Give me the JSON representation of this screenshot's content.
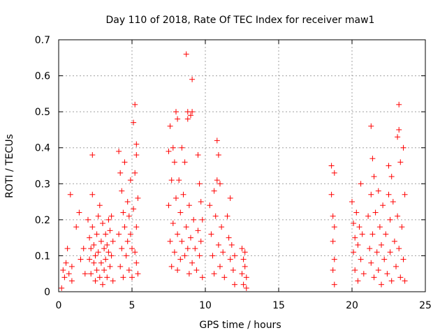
{
  "chart_data": {
    "type": "scatter",
    "title": "Day 110 of 2018, Rate Of TEC Index for receiver maw1",
    "xlabel": "GPS time / hours",
    "ylabel": "ROTI / TECUs",
    "xlim": [
      0,
      25
    ],
    "ylim": [
      0,
      0.7
    ],
    "xticks": [
      "0",
      "5",
      "10",
      "15",
      "20",
      "25"
    ],
    "yticks": [
      "0",
      "0.1",
      "0.2",
      "0.3",
      "0.4",
      "0.5",
      "0.6",
      "0.7"
    ],
    "grid": true,
    "marker": "+",
    "color": "#ff0000",
    "series": [
      {
        "name": "ROTI",
        "points": [
          [
            0.2,
            0.01
          ],
          [
            0.3,
            0.06
          ],
          [
            0.4,
            0.04
          ],
          [
            0.5,
            0.08
          ],
          [
            0.6,
            0.12
          ],
          [
            0.7,
            0.05
          ],
          [
            0.8,
            0.27
          ],
          [
            0.9,
            0.07
          ],
          [
            0.9,
            0.03
          ],
          [
            1.2,
            0.18
          ],
          [
            1.4,
            0.22
          ],
          [
            1.5,
            0.09
          ],
          [
            1.7,
            0.12
          ],
          [
            1.8,
            0.05
          ],
          [
            2.0,
            0.2
          ],
          [
            2.1,
            0.15
          ],
          [
            2.1,
            0.09
          ],
          [
            2.2,
            0.12
          ],
          [
            2.2,
            0.05
          ],
          [
            2.3,
            0.38
          ],
          [
            2.3,
            0.27
          ],
          [
            2.3,
            0.18
          ],
          [
            2.4,
            0.08
          ],
          [
            2.4,
            0.13
          ],
          [
            2.5,
            0.03
          ],
          [
            2.5,
            0.1
          ],
          [
            2.6,
            0.16
          ],
          [
            2.6,
            0.06
          ],
          [
            2.7,
            0.21
          ],
          [
            2.7,
            0.11
          ],
          [
            2.8,
            0.24
          ],
          [
            2.8,
            0.04
          ],
          [
            2.9,
            0.14
          ],
          [
            2.9,
            0.08
          ],
          [
            3.0,
            0.19
          ],
          [
            3.0,
            0.02
          ],
          [
            3.1,
            0.12
          ],
          [
            3.1,
            0.06
          ],
          [
            3.2,
            0.16
          ],
          [
            3.2,
            0.09
          ],
          [
            3.3,
            0.13
          ],
          [
            3.3,
            0.04
          ],
          [
            3.4,
            0.2
          ],
          [
            3.4,
            0.11
          ],
          [
            3.5,
            0.17
          ],
          [
            3.5,
            0.07
          ],
          [
            3.6,
            0.21
          ],
          [
            3.6,
            0.1
          ],
          [
            3.7,
            0.14
          ],
          [
            3.7,
            0.03
          ],
          [
            4.1,
            0.39
          ],
          [
            4.1,
            0.16
          ],
          [
            4.2,
            0.33
          ],
          [
            4.2,
            0.07
          ],
          [
            4.3,
            0.28
          ],
          [
            4.3,
            0.12
          ],
          [
            4.4,
            0.22
          ],
          [
            4.4,
            0.04
          ],
          [
            4.5,
            0.36
          ],
          [
            4.5,
            0.18
          ],
          [
            4.6,
            0.1
          ],
          [
            4.7,
            0.25
          ],
          [
            4.7,
            0.14
          ],
          [
            4.8,
            0.21
          ],
          [
            4.8,
            0.06
          ],
          [
            4.9,
            0.31
          ],
          [
            4.9,
            0.16
          ],
          [
            5.0,
            0.12
          ],
          [
            5.0,
            0.04
          ],
          [
            5.1,
            0.47
          ],
          [
            5.1,
            0.23
          ],
          [
            5.2,
            0.52
          ],
          [
            5.2,
            0.33
          ],
          [
            5.2,
            0.11
          ],
          [
            5.3,
            0.41
          ],
          [
            5.3,
            0.38
          ],
          [
            5.3,
            0.18
          ],
          [
            5.3,
            0.08
          ],
          [
            5.4,
            0.26
          ],
          [
            5.4,
            0.05
          ],
          [
            7.5,
            0.39
          ],
          [
            7.5,
            0.24
          ],
          [
            7.6,
            0.46
          ],
          [
            7.6,
            0.14
          ],
          [
            7.7,
            0.31
          ],
          [
            7.7,
            0.07
          ],
          [
            7.8,
            0.4
          ],
          [
            7.8,
            0.19
          ],
          [
            7.9,
            0.36
          ],
          [
            7.9,
            0.11
          ],
          [
            8.0,
            0.5
          ],
          [
            8.0,
            0.26
          ],
          [
            8.1,
            0.48
          ],
          [
            8.1,
            0.16
          ],
          [
            8.1,
            0.06
          ],
          [
            8.2,
            0.31
          ],
          [
            8.3,
            0.22
          ],
          [
            8.3,
            0.09
          ],
          [
            8.4,
            0.4
          ],
          [
            8.4,
            0.14
          ],
          [
            8.5,
            0.27
          ],
          [
            8.6,
            0.36
          ],
          [
            8.6,
            0.1
          ],
          [
            8.7,
            0.66
          ],
          [
            8.7,
            0.18
          ],
          [
            8.8,
            0.5
          ],
          [
            8.8,
            0.48
          ],
          [
            8.8,
            0.12
          ],
          [
            8.9,
            0.24
          ],
          [
            8.9,
            0.05
          ],
          [
            9.0,
            0.49
          ],
          [
            9.0,
            0.15
          ],
          [
            9.1,
            0.59
          ],
          [
            9.1,
            0.5
          ],
          [
            9.1,
            0.08
          ],
          [
            9.2,
            0.2
          ],
          [
            9.3,
            0.12
          ],
          [
            9.4,
            0.06
          ],
          [
            9.5,
            0.38
          ],
          [
            9.5,
            0.17
          ],
          [
            9.6,
            0.3
          ],
          [
            9.6,
            0.1
          ],
          [
            9.7,
            0.25
          ],
          [
            9.7,
            0.14
          ],
          [
            9.8,
            0.2
          ],
          [
            9.8,
            0.04
          ],
          [
            10.3,
            0.24
          ],
          [
            10.4,
            0.16
          ],
          [
            10.5,
            0.1
          ],
          [
            10.6,
            0.28
          ],
          [
            10.6,
            0.05
          ],
          [
            10.7,
            0.21
          ],
          [
            10.8,
            0.42
          ],
          [
            10.8,
            0.31
          ],
          [
            10.9,
            0.38
          ],
          [
            10.9,
            0.13
          ],
          [
            11.0,
            0.3
          ],
          [
            11.0,
            0.07
          ],
          [
            11.1,
            0.18
          ],
          [
            11.2,
            0.11
          ],
          [
            11.3,
            0.04
          ],
          [
            11.5,
            0.21
          ],
          [
            11.6,
            0.15
          ],
          [
            11.7,
            0.26
          ],
          [
            11.7,
            0.09
          ],
          [
            11.8,
            0.13
          ],
          [
            11.9,
            0.06
          ],
          [
            12.0,
            0.1
          ],
          [
            12.0,
            0.02
          ],
          [
            12.5,
            0.12
          ],
          [
            12.5,
            0.05
          ],
          [
            12.6,
            0.09
          ],
          [
            12.6,
            0.02
          ],
          [
            12.7,
            0.11
          ],
          [
            12.7,
            0.07
          ],
          [
            12.8,
            0.04
          ],
          [
            12.8,
            0.01
          ],
          [
            18.6,
            0.35
          ],
          [
            18.6,
            0.27
          ],
          [
            18.7,
            0.21
          ],
          [
            18.7,
            0.14
          ],
          [
            18.7,
            0.06
          ],
          [
            18.8,
            0.33
          ],
          [
            18.8,
            0.18
          ],
          [
            18.8,
            0.09
          ],
          [
            18.8,
            0.02
          ],
          [
            20.0,
            0.25
          ],
          [
            20.1,
            0.19
          ],
          [
            20.1,
            0.11
          ],
          [
            20.2,
            0.15
          ],
          [
            20.2,
            0.06
          ],
          [
            20.3,
            0.22
          ],
          [
            20.4,
            0.13
          ],
          [
            20.4,
            0.03
          ],
          [
            20.5,
            0.18
          ],
          [
            20.6,
            0.3
          ],
          [
            20.6,
            0.09
          ],
          [
            20.7,
            0.16
          ],
          [
            20.8,
            0.05
          ],
          [
            21.1,
            0.21
          ],
          [
            21.2,
            0.12
          ],
          [
            21.3,
            0.46
          ],
          [
            21.3,
            0.27
          ],
          [
            21.3,
            0.08
          ],
          [
            21.4,
            0.37
          ],
          [
            21.4,
            0.16
          ],
          [
            21.5,
            0.32
          ],
          [
            21.5,
            0.04
          ],
          [
            21.6,
            0.22
          ],
          [
            21.7,
            0.11
          ],
          [
            21.8,
            0.28
          ],
          [
            21.8,
            0.06
          ],
          [
            21.9,
            0.18
          ],
          [
            22.0,
            0.13
          ],
          [
            22.0,
            0.02
          ],
          [
            22.1,
            0.24
          ],
          [
            22.2,
            0.09
          ],
          [
            22.3,
            0.16
          ],
          [
            22.4,
            0.05
          ],
          [
            22.5,
            0.35
          ],
          [
            22.5,
            0.27
          ],
          [
            22.6,
            0.2
          ],
          [
            22.6,
            0.11
          ],
          [
            22.7,
            0.32
          ],
          [
            22.7,
            0.03
          ],
          [
            22.8,
            0.25
          ],
          [
            22.9,
            0.14
          ],
          [
            23.0,
            0.07
          ],
          [
            23.1,
            0.43
          ],
          [
            23.1,
            0.21
          ],
          [
            23.2,
            0.52
          ],
          [
            23.2,
            0.45
          ],
          [
            23.2,
            0.12
          ],
          [
            23.3,
            0.36
          ],
          [
            23.3,
            0.04
          ],
          [
            23.4,
            0.18
          ],
          [
            23.5,
            0.4
          ],
          [
            23.5,
            0.09
          ],
          [
            23.6,
            0.27
          ],
          [
            23.6,
            0.03
          ]
        ]
      }
    ]
  }
}
